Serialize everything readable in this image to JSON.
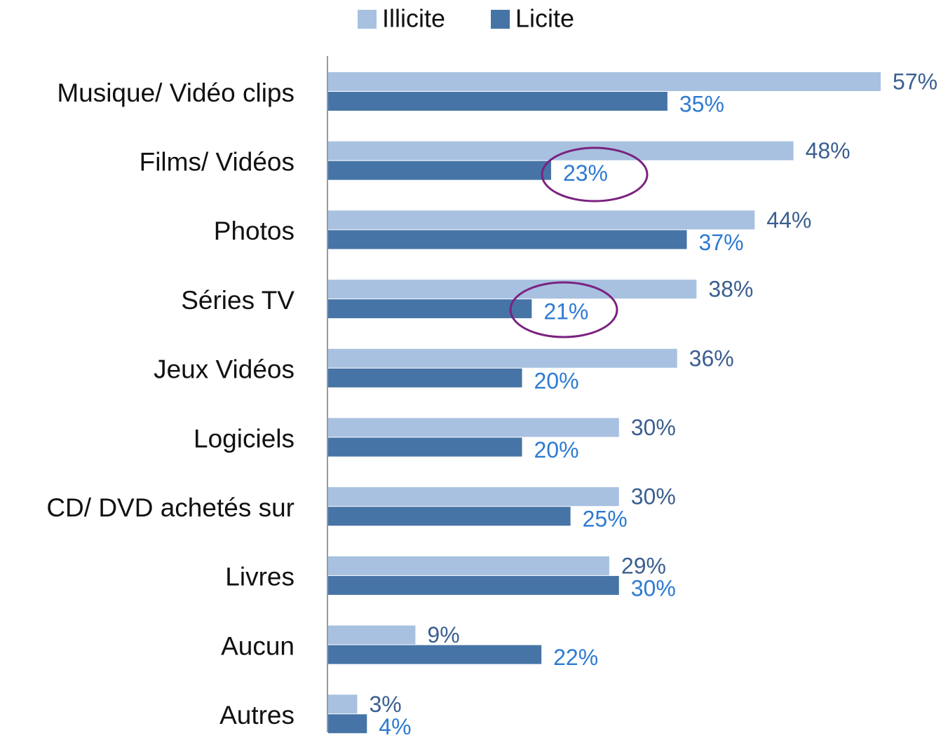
{
  "chart_data": {
    "type": "bar",
    "orientation": "horizontal",
    "categories": [
      "Musique/ Vidéo clips",
      "Films/ Vidéos",
      "Photos",
      "Séries TV",
      "Jeux Vidéos",
      "Logiciels",
      "CD/ DVD achetés sur",
      "Livres",
      "Aucun",
      "Autres"
    ],
    "series": [
      {
        "name": "Illicite",
        "color": "#a8c1e0",
        "label_color": "#3b5f8f",
        "values": [
          57,
          48,
          44,
          38,
          36,
          30,
          30,
          29,
          9,
          3
        ],
        "value_labels": [
          "57%",
          "48%",
          "44%",
          "38%",
          "36%",
          "30%",
          "30%",
          "29%",
          "9%",
          "3%"
        ]
      },
      {
        "name": "Licite",
        "color": "#4674a6",
        "label_color": "#2e7bd1",
        "values": [
          35,
          23,
          37,
          21,
          20,
          20,
          25,
          30,
          22,
          4
        ],
        "value_labels": [
          "35%",
          "23%",
          "37%",
          "21%",
          "20%",
          "20%",
          "25%",
          "30%",
          "22%",
          "4%"
        ]
      }
    ],
    "legend": "top"
  }
}
